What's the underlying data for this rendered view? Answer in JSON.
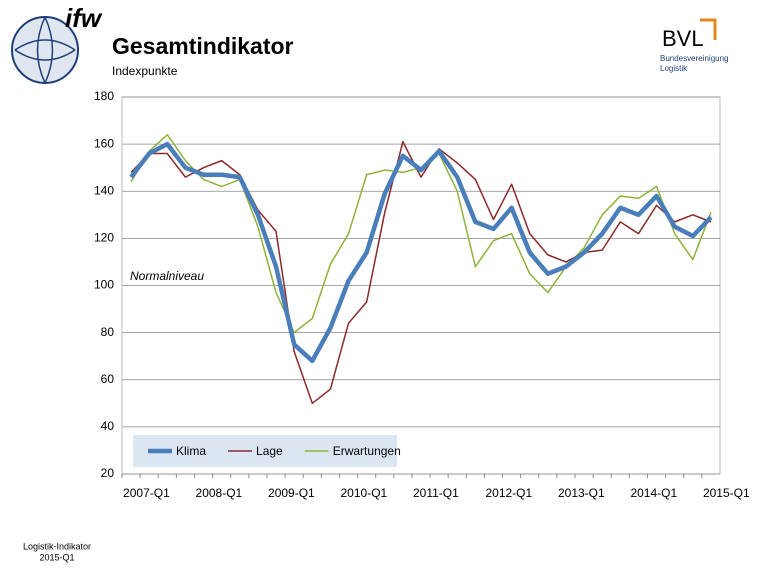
{
  "brand": "ifw",
  "logo": {
    "name": "BVL",
    "subtitle": "Bundesvereinigung Logistik"
  },
  "footer": {
    "line1": "Logistik-Indikator",
    "line2": "2015-Q1"
  },
  "chart_data": {
    "type": "line",
    "title": "Gesamtindikator",
    "subtitle": "Indexpunkte",
    "annotation": "Normalniveau",
    "categories": [
      "2007-Q1",
      null,
      null,
      null,
      "2008-Q1",
      null,
      null,
      null,
      "2009-Q1",
      null,
      null,
      null,
      "2010-Q1",
      null,
      null,
      null,
      "2011-Q1",
      null,
      null,
      null,
      "2012-Q1",
      null,
      null,
      null,
      "2013-Q1",
      null,
      null,
      null,
      "2014-Q1",
      null,
      null,
      null,
      "2015-Q1"
    ],
    "series": [
      {
        "name": "Klima",
        "color": "#4a7ebb",
        "values": [
          146,
          156,
          160,
          150,
          147,
          147,
          146,
          130,
          108,
          75,
          68,
          82,
          102,
          114,
          139,
          155,
          149,
          157,
          146,
          127,
          124,
          133,
          114,
          105,
          108,
          114,
          122,
          133,
          130,
          138,
          125,
          121,
          129
        ]
      },
      {
        "name": "Lage",
        "color": "#8b2a2a",
        "values": [
          148,
          156,
          156,
          146,
          150,
          153,
          147,
          132,
          123,
          72,
          50,
          56,
          84,
          93,
          131,
          161,
          146,
          158,
          152,
          145,
          128,
          143,
          122,
          113,
          110,
          114,
          115,
          127,
          122,
          134,
          127,
          130,
          127
        ]
      },
      {
        "name": "Erwartungen",
        "color": "#8db33a",
        "values": [
          144,
          157,
          164,
          153,
          145,
          142,
          145,
          125,
          97,
          80,
          86,
          109,
          122,
          147,
          149,
          148,
          150,
          156,
          140,
          108,
          119,
          122,
          105,
          97,
          108,
          116,
          130,
          138,
          137,
          142,
          122,
          111,
          131
        ]
      }
    ],
    "ylim": [
      20,
      180
    ],
    "yticks": [
      20,
      40,
      60,
      80,
      100,
      120,
      140,
      160,
      180
    ],
    "grid": true,
    "legend": "lower left"
  }
}
